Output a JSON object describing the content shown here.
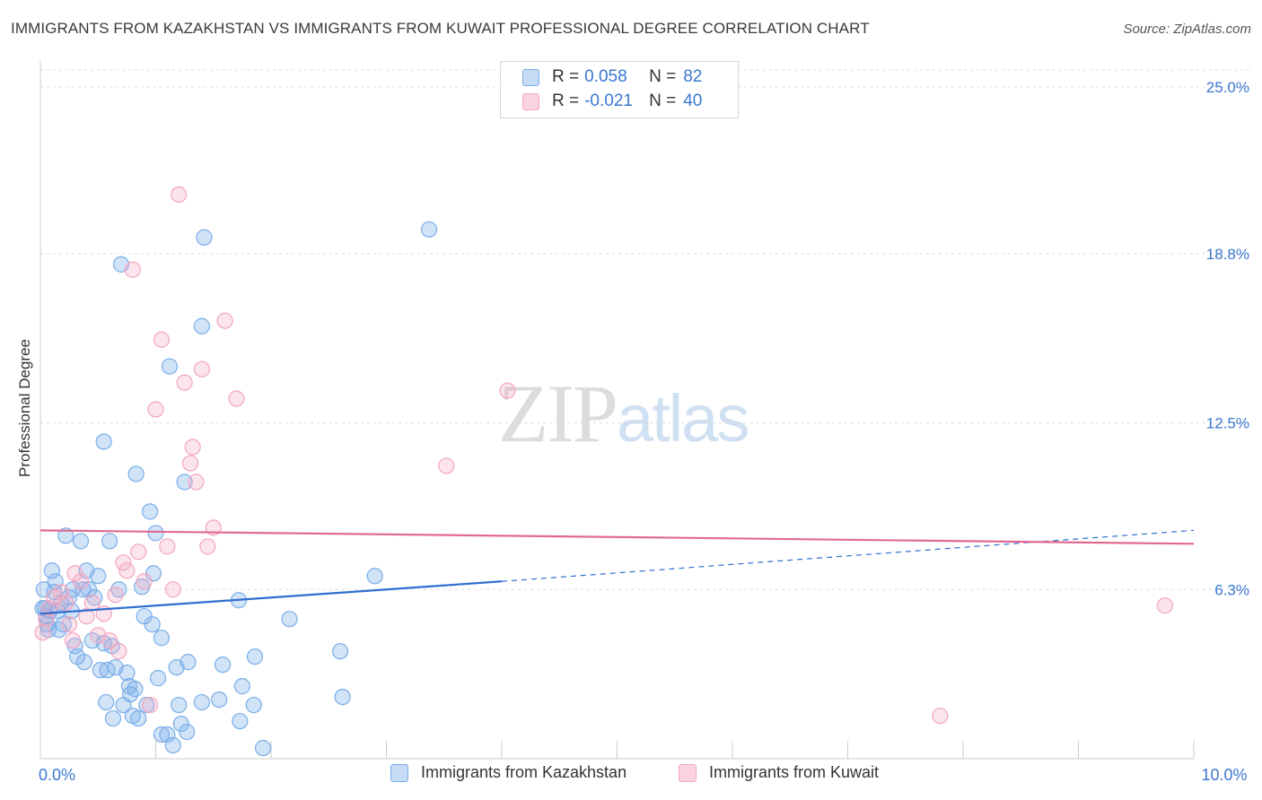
{
  "header": {
    "title": "IMMIGRANTS FROM KAZAKHSTAN VS IMMIGRANTS FROM KUWAIT PROFESSIONAL DEGREE CORRELATION CHART",
    "source": "Source: ZipAtlas.com"
  },
  "watermark": {
    "zip": "ZIP",
    "atlas": "atlas"
  },
  "legend_top": {
    "rows": [
      {
        "r_label": "R =",
        "r_value": "0.058",
        "n_label": "N =",
        "n_value": "82"
      },
      {
        "r_label": "R =",
        "r_value": "-0.021",
        "n_label": "N =",
        "n_value": "40"
      }
    ]
  },
  "chart_data": {
    "type": "scatter",
    "title": "IMMIGRANTS FROM KAZAKHSTAN VS IMMIGRANTS FROM KUWAIT PROFESSIONAL DEGREE CORRELATION CHART",
    "xlabel": "",
    "ylabel": "Professional Degree",
    "xlim": [
      0,
      10
    ],
    "ylim": [
      0,
      25.7
    ],
    "x_tick_labels": [
      {
        "value": 0,
        "label": "0.0%"
      },
      {
        "value": 10,
        "label": "10.0%"
      }
    ],
    "y_tick_labels": [
      {
        "value": 6.3,
        "label": "6.3%"
      },
      {
        "value": 12.5,
        "label": "12.5%"
      },
      {
        "value": 18.8,
        "label": "18.8%"
      },
      {
        "value": 25.0,
        "label": "25.0%"
      }
    ],
    "grid": "horizontal dashed",
    "legend_position": "bottom-center",
    "series": [
      {
        "name": "Immigrants from Kazakhstan",
        "color": "#7aaee8",
        "line_color": "#2f6fcf",
        "trend": {
          "x": [
            0,
            4.0
          ],
          "y": [
            5.4,
            6.6
          ],
          "dashed_to": [
            10,
            8.5
          ]
        },
        "points": [
          [
            0.03,
            6.3
          ],
          [
            0.04,
            5.6
          ],
          [
            0.05,
            5.3
          ],
          [
            0.06,
            5.0
          ],
          [
            0.07,
            4.8
          ],
          [
            0.1,
            7.0
          ],
          [
            0.12,
            6.2
          ],
          [
            0.13,
            6.6
          ],
          [
            0.15,
            5.5
          ],
          [
            0.18,
            5.8
          ],
          [
            0.2,
            5.0
          ],
          [
            0.22,
            8.3
          ],
          [
            0.25,
            6.0
          ],
          [
            0.27,
            5.5
          ],
          [
            0.3,
            4.2
          ],
          [
            0.32,
            3.8
          ],
          [
            0.35,
            8.1
          ],
          [
            0.37,
            6.3
          ],
          [
            0.38,
            3.6
          ],
          [
            0.4,
            7.0
          ],
          [
            0.42,
            6.3
          ],
          [
            0.45,
            4.4
          ],
          [
            0.47,
            6.0
          ],
          [
            0.5,
            6.8
          ],
          [
            0.52,
            3.3
          ],
          [
            0.55,
            4.3
          ],
          [
            0.57,
            2.1
          ],
          [
            0.6,
            8.1
          ],
          [
            0.62,
            4.2
          ],
          [
            0.65,
            3.4
          ],
          [
            0.68,
            6.3
          ],
          [
            0.7,
            18.4
          ],
          [
            0.72,
            2.0
          ],
          [
            0.75,
            3.2
          ],
          [
            0.77,
            2.7
          ],
          [
            0.78,
            2.4
          ],
          [
            0.8,
            1.6
          ],
          [
            0.82,
            2.6
          ],
          [
            0.85,
            1.5
          ],
          [
            0.88,
            6.4
          ],
          [
            0.9,
            5.3
          ],
          [
            0.92,
            2.0
          ],
          [
            0.95,
            9.2
          ],
          [
            0.97,
            5.0
          ],
          [
            0.98,
            6.9
          ],
          [
            1.0,
            8.4
          ],
          [
            1.02,
            3.0
          ],
          [
            1.05,
            4.5
          ],
          [
            1.1,
            0.9
          ],
          [
            1.12,
            14.6
          ],
          [
            1.15,
            0.5
          ],
          [
            1.18,
            3.4
          ],
          [
            1.2,
            2.0
          ],
          [
            1.22,
            1.3
          ],
          [
            1.25,
            10.3
          ],
          [
            1.27,
            1.0
          ],
          [
            1.28,
            3.6
          ],
          [
            1.4,
            2.1
          ],
          [
            1.4,
            16.1
          ],
          [
            1.42,
            19.4
          ],
          [
            1.55,
            2.2
          ],
          [
            1.58,
            3.5
          ],
          [
            1.72,
            5.9
          ],
          [
            1.73,
            1.4
          ],
          [
            1.75,
            2.7
          ],
          [
            1.85,
            2.0
          ],
          [
            1.86,
            3.8
          ],
          [
            1.93,
            0.4
          ],
          [
            2.16,
            5.2
          ],
          [
            2.6,
            4.0
          ],
          [
            2.62,
            2.3
          ],
          [
            2.9,
            6.8
          ],
          [
            3.37,
            19.7
          ],
          [
            0.08,
            5.5
          ],
          [
            0.16,
            4.8
          ],
          [
            0.28,
            6.3
          ],
          [
            0.55,
            11.8
          ],
          [
            0.63,
            1.5
          ],
          [
            0.83,
            10.6
          ],
          [
            1.05,
            0.9
          ],
          [
            0.02,
            5.6
          ],
          [
            0.58,
            3.3
          ]
        ]
      },
      {
        "name": "Immigrants from Kuwait",
        "color": "#f3a6c0",
        "line_color": "#e06a93",
        "trend": {
          "x": [
            0,
            10
          ],
          "y": [
            8.5,
            8.0
          ]
        },
        "points": [
          [
            0.02,
            4.7
          ],
          [
            0.05,
            5.2
          ],
          [
            0.08,
            5.6
          ],
          [
            0.12,
            6.0
          ],
          [
            0.18,
            6.2
          ],
          [
            0.22,
            5.8
          ],
          [
            0.25,
            5.0
          ],
          [
            0.28,
            4.4
          ],
          [
            0.3,
            6.9
          ],
          [
            0.35,
            6.6
          ],
          [
            0.4,
            5.3
          ],
          [
            0.45,
            5.8
          ],
          [
            0.5,
            4.6
          ],
          [
            0.55,
            5.4
          ],
          [
            0.6,
            4.4
          ],
          [
            0.65,
            6.1
          ],
          [
            0.68,
            4.0
          ],
          [
            0.72,
            7.3
          ],
          [
            0.75,
            7.0
          ],
          [
            0.8,
            18.2
          ],
          [
            0.85,
            7.7
          ],
          [
            0.9,
            6.6
          ],
          [
            0.95,
            2.0
          ],
          [
            1.0,
            13.0
          ],
          [
            1.05,
            15.6
          ],
          [
            1.1,
            7.9
          ],
          [
            1.15,
            6.3
          ],
          [
            1.2,
            21.0
          ],
          [
            1.25,
            14.0
          ],
          [
            1.3,
            11.0
          ],
          [
            1.32,
            11.6
          ],
          [
            1.35,
            10.3
          ],
          [
            1.4,
            14.5
          ],
          [
            1.45,
            7.9
          ],
          [
            1.5,
            8.6
          ],
          [
            1.6,
            16.3
          ],
          [
            1.7,
            13.4
          ],
          [
            3.52,
            10.9
          ],
          [
            4.05,
            13.7
          ],
          [
            9.75,
            5.7
          ]
        ]
      }
    ],
    "extra_points_kuwait": [
      [
        7.8,
        1.6
      ]
    ]
  },
  "legend_bottom": {
    "items": [
      "Immigrants from Kazakhstan",
      "Immigrants from Kuwait"
    ]
  }
}
